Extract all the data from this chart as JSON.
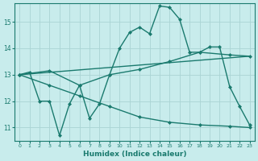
{
  "xlabel": "Humidex (Indice chaleur)",
  "bg_color": "#c8ecec",
  "grid_color": "#aad4d4",
  "line_color": "#1a7a6e",
  "xlim": [
    -0.5,
    23.5
  ],
  "ylim": [
    10.5,
    15.7
  ],
  "yticks": [
    11,
    12,
    13,
    14,
    15
  ],
  "xticks": [
    0,
    1,
    2,
    3,
    4,
    5,
    6,
    7,
    8,
    9,
    10,
    11,
    12,
    13,
    14,
    15,
    16,
    17,
    18,
    19,
    20,
    21,
    22,
    23
  ],
  "lines": [
    {
      "x": [
        0,
        1,
        2,
        3,
        4,
        5,
        6,
        7,
        8,
        9,
        10,
        11,
        12,
        13,
        14,
        15,
        16,
        17,
        18,
        19,
        20,
        21,
        22,
        23
      ],
      "y": [
        13.0,
        13.1,
        12.0,
        12.0,
        10.7,
        11.9,
        12.6,
        11.35,
        11.9,
        13.0,
        14.0,
        14.6,
        14.8,
        14.55,
        15.6,
        15.55,
        15.1,
        13.85,
        13.85,
        14.05,
        14.05,
        12.55,
        11.8,
        11.1
      ],
      "marker": "D",
      "markersize": 2.0,
      "linewidth": 1.0
    },
    {
      "x": [
        0,
        3,
        6,
        9,
        12,
        15,
        18,
        21,
        23
      ],
      "y": [
        13.0,
        12.6,
        12.2,
        11.8,
        11.4,
        11.2,
        11.1,
        11.05,
        11.0
      ],
      "marker": "D",
      "markersize": 2.0,
      "linewidth": 1.0
    },
    {
      "x": [
        0,
        3,
        6,
        9,
        12,
        15,
        18,
        21,
        23
      ],
      "y": [
        13.0,
        13.15,
        12.6,
        13.0,
        13.2,
        13.5,
        13.85,
        13.75,
        13.7
      ],
      "marker": "D",
      "markersize": 2.0,
      "linewidth": 1.0
    },
    {
      "x": [
        0,
        23
      ],
      "y": [
        13.0,
        13.7
      ],
      "marker": null,
      "markersize": 0,
      "linewidth": 1.0
    }
  ]
}
